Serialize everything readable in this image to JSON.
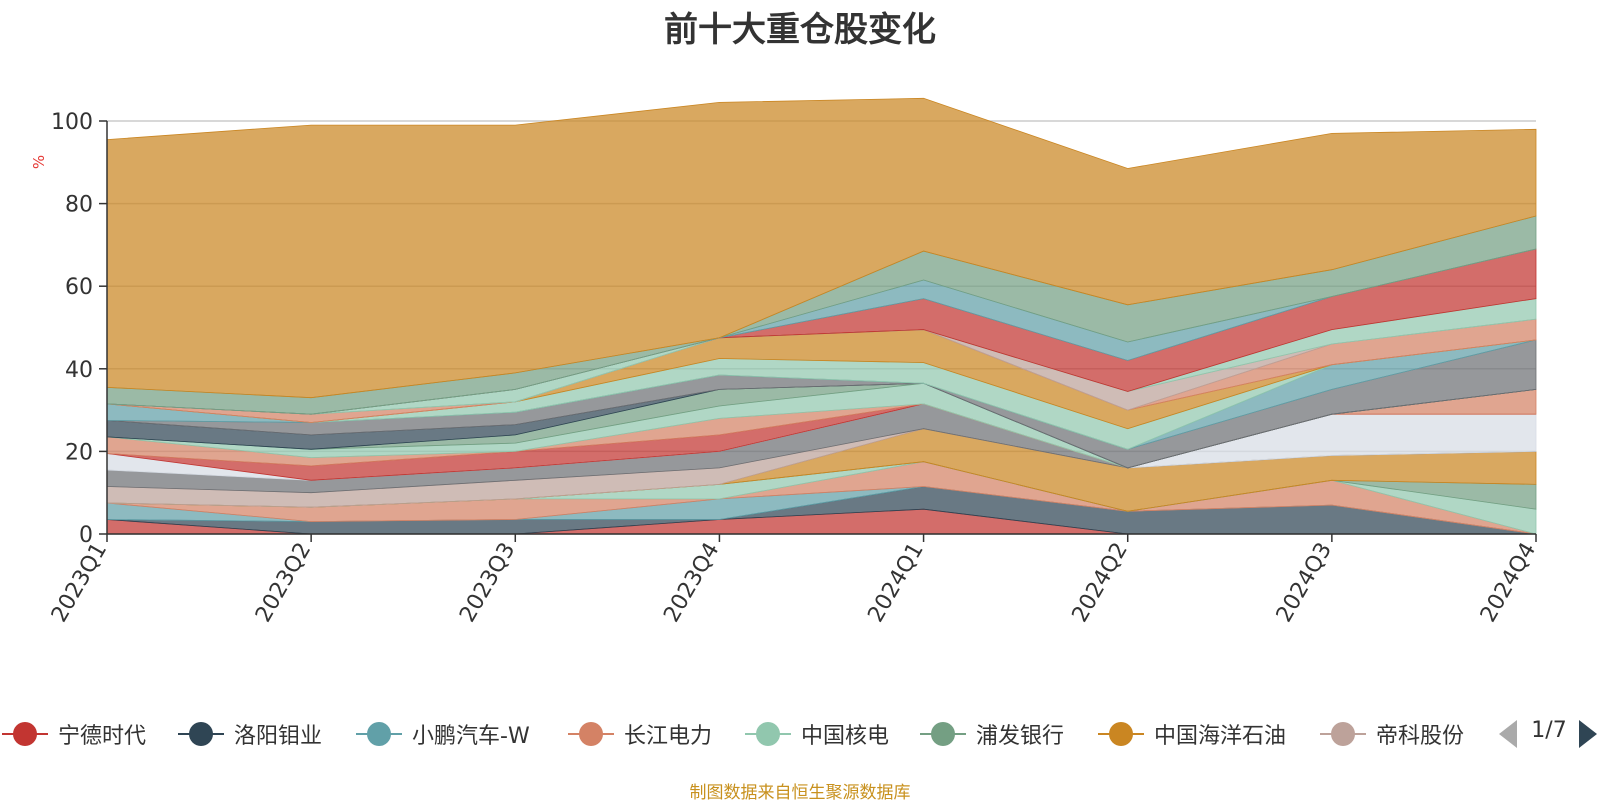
{
  "chart_data": {
    "type": "area",
    "stacked": true,
    "title": "前十大重仓股变化",
    "ylabel": "%",
    "xlabel": "",
    "ylim": [
      0,
      100
    ],
    "yticks": [
      0,
      20,
      40,
      60,
      80,
      100
    ],
    "grid": true,
    "categories": [
      "2023Q1",
      "2023Q2",
      "2023Q3",
      "2023Q4",
      "2024Q1",
      "2024Q2",
      "2024Q3",
      "2024Q4"
    ],
    "legend_position": "bottom",
    "legend_page": "1/7",
    "series": [
      {
        "name": "宁德时代",
        "color": "#c23531",
        "in_legend": true,
        "values": [
          3.5,
          0,
          0,
          3.5,
          6,
          0,
          0,
          0
        ]
      },
      {
        "name": "洛阳钼业",
        "color": "#2f4554",
        "in_legend": true,
        "values": [
          0,
          3,
          3.5,
          0,
          5.5,
          5.5,
          7,
          0
        ]
      },
      {
        "name": "小鹏汽车-W",
        "color": "#61a0a8",
        "in_legend": true,
        "values": [
          4,
          0,
          0,
          5,
          0,
          0,
          0,
          0
        ]
      },
      {
        "name": "长江电力",
        "color": "#d48265",
        "in_legend": true,
        "values": [
          0,
          3.5,
          5,
          0,
          6,
          0,
          6,
          0
        ]
      },
      {
        "name": "中国核电",
        "color": "#91c7ae",
        "in_legend": true,
        "values": [
          0,
          0,
          0,
          3.5,
          0,
          0,
          0,
          6
        ]
      },
      {
        "name": "浦发银行",
        "color": "#749f83",
        "in_legend": true,
        "values": [
          0,
          0,
          0,
          0,
          0,
          0,
          0,
          6
        ]
      },
      {
        "name": "中国海洋石油",
        "color": "#ca8622",
        "in_legend": true,
        "values": [
          0,
          0,
          0,
          0,
          8,
          10.5,
          6,
          8
        ]
      },
      {
        "name": "帝科股份",
        "color": "#bda29a",
        "in_legend": true,
        "values": [
          4,
          3.5,
          4.5,
          4,
          0,
          0,
          0,
          0
        ]
      },
      {
        "name": "",
        "color": "#6e7074",
        "in_legend": false,
        "values": [
          4,
          3,
          3,
          4,
          6,
          0,
          0,
          0
        ]
      },
      {
        "name": "",
        "color": "#d7dde5",
        "in_legend": false,
        "values": [
          4,
          0,
          0,
          0,
          0,
          0,
          10,
          9
        ]
      },
      {
        "name": "",
        "color": "#c23531",
        "in_legend": false,
        "values": [
          0,
          3.5,
          4,
          4,
          0,
          0,
          0,
          0
        ]
      },
      {
        "name": "",
        "color": "#d48265",
        "in_legend": false,
        "values": [
          4,
          2,
          0,
          4,
          0,
          0,
          0,
          6
        ]
      },
      {
        "name": "",
        "color": "#91c7ae",
        "in_legend": false,
        "values": [
          0,
          2,
          2,
          3,
          5,
          0,
          0,
          0
        ]
      },
      {
        "name": "",
        "color": "#749f83",
        "in_legend": false,
        "values": [
          0,
          0,
          2,
          4,
          0,
          0,
          0,
          0
        ]
      },
      {
        "name": "",
        "color": "#2f4554",
        "in_legend": false,
        "values": [
          4,
          3.5,
          2.5,
          0,
          0,
          0,
          0,
          0
        ]
      },
      {
        "name": "",
        "color": "#6e7074",
        "in_legend": false,
        "values": [
          0,
          3,
          3,
          3.5,
          0,
          4.5,
          6,
          12
        ]
      },
      {
        "name": "",
        "color": "#61a0a8",
        "in_legend": false,
        "values": [
          4,
          0,
          0,
          0,
          0,
          0,
          6,
          0
        ]
      },
      {
        "name": "",
        "color": "#91c7ae",
        "in_legend": false,
        "values": [
          0,
          0,
          2.5,
          4,
          5,
          5,
          0,
          0
        ]
      },
      {
        "name": "",
        "color": "#ca8622",
        "in_legend": false,
        "values": [
          0,
          0,
          0,
          5,
          8,
          4.5,
          0,
          0
        ]
      },
      {
        "name": "",
        "color": "#d48265",
        "in_legend": false,
        "values": [
          0,
          2,
          0,
          0,
          0,
          0,
          5,
          5
        ]
      },
      {
        "name": "",
        "color": "#bda29a",
        "in_legend": false,
        "values": [
          0,
          0,
          0,
          0,
          0,
          4.5,
          0,
          0
        ]
      },
      {
        "name": "",
        "color": "#91c7ae",
        "in_legend": false,
        "values": [
          0,
          0,
          3,
          0,
          0,
          0,
          3.5,
          5
        ]
      },
      {
        "name": "",
        "color": "#c23531",
        "in_legend": false,
        "values": [
          0,
          0,
          0,
          0,
          7.5,
          7.5,
          8,
          12
        ]
      },
      {
        "name": "",
        "color": "#61a0a8",
        "in_legend": false,
        "values": [
          0,
          0,
          0,
          0,
          4.5,
          4.5,
          0,
          0
        ]
      },
      {
        "name": "",
        "color": "#749f83",
        "in_legend": false,
        "values": [
          4,
          4,
          4,
          0,
          7,
          9,
          6.5,
          8
        ]
      },
      {
        "name": "",
        "color": "#ca8622",
        "in_legend": false,
        "values": [
          60,
          66,
          60,
          57,
          37,
          33,
          33,
          21
        ]
      }
    ]
  },
  "source_note": "制图数据来自恒生聚源数据库"
}
